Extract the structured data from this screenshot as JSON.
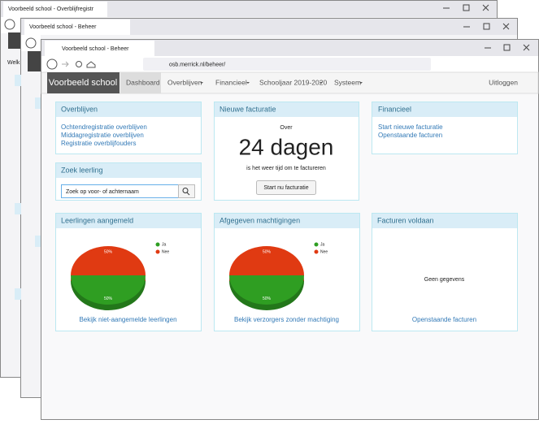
{
  "windows": [
    {
      "tab": "Voorbeeld school - Overblijfregistr",
      "content_text": "Welk"
    },
    {
      "tab": "Voorbeeld school - Beheer"
    },
    {
      "tab": "Voorbeeld school - Beheer"
    }
  ],
  "url": "osb.merrick.nl/beheer/",
  "nav": {
    "brand": "Voorbeeld school",
    "items": [
      "Dashboard",
      "Overblijven",
      "Financieel",
      "Schooljaar 2019-2020",
      "Systeem"
    ],
    "logout": "Uitloggen"
  },
  "overblijven": {
    "title": "Overblijven",
    "links": [
      "Ochtendregistratie overblijven",
      "Middagregistratie overblijven",
      "Registratie overblijfouders"
    ]
  },
  "facturatie": {
    "title": "Nieuwe facturatie",
    "pre": "Over",
    "big": "24 dagen",
    "post": "is het weer tijd om te factureren",
    "button": "Start nu facturatie"
  },
  "financieel": {
    "title": "Financieel",
    "links": [
      "Start nieuwe facturatie",
      "Openstaande facturen"
    ]
  },
  "zoek": {
    "title": "Zoek leerling",
    "placeholder": "Zoek op voor- of achternaam"
  },
  "charts": [
    {
      "title": "Leerlingen aangemeld",
      "type": "pie",
      "categories": [
        "Ja",
        "Nee"
      ],
      "colors": [
        "#2f9e22",
        "#e03a12"
      ],
      "values": [
        50,
        50
      ],
      "value_labels": [
        "50%",
        "50%"
      ],
      "link": "Bekijk niet-aangemelde leerlingen"
    },
    {
      "title": "Afgegeven machtigingen",
      "type": "pie",
      "categories": [
        "Ja",
        "Nee"
      ],
      "colors": [
        "#2f9e22",
        "#e03a12"
      ],
      "values": [
        50,
        50
      ],
      "value_labels": [
        "50%",
        "50%"
      ],
      "link": "Bekijk verzorgers zonder machtiging"
    },
    {
      "title": "Facturen voldaan",
      "type": "empty",
      "message": "Geen gegevens",
      "link": "Openstaande facturen"
    }
  ]
}
